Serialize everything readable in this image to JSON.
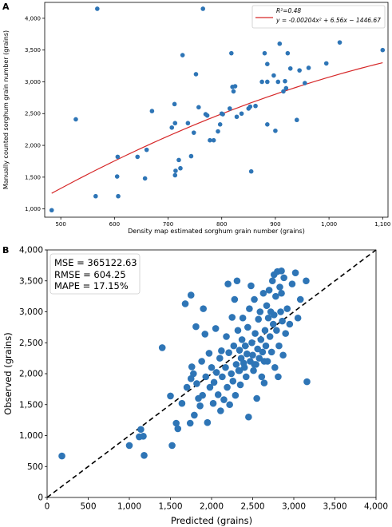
{
  "panels": {
    "a_label": "A",
    "b_label": "B"
  },
  "colors": {
    "point": "#2e75b6",
    "fit_line": "#d62728",
    "diagonal": "#000000",
    "axis": "#000000"
  },
  "chart_data": [
    {
      "type": "scatter",
      "panel": "A",
      "title": "",
      "xlabel": "Density map estimated sorghum grain number (grains)",
      "ylabel": "Manually counted sorghum grain number (grains)",
      "xlim": [
        470,
        1110
      ],
      "ylim": [
        870,
        4250
      ],
      "xticks": [
        500,
        600,
        700,
        800,
        900,
        1000,
        1100
      ],
      "xtick_labels": [
        "500",
        "600",
        "700",
        "800",
        "900",
        "1,000",
        "1,100"
      ],
      "yticks": [
        1000,
        1500,
        2000,
        2500,
        3000,
        3500,
        4000
      ],
      "ytick_labels": [
        "1,000",
        "1,500",
        "2,000",
        "2,500",
        "3,000",
        "3,500",
        "4,000"
      ],
      "legend": {
        "position": "top-right",
        "r2_label": "R²=0.48",
        "equation_label": "y = -0.00204x² + 6.56x − 1446.67"
      },
      "fit": {
        "a": -0.00204,
        "b": 6.56,
        "c": -1446.67,
        "x_range": [
          483,
          1100
        ]
      },
      "points": [
        {
          "x": 483,
          "y": 980
        },
        {
          "x": 528,
          "y": 2410
        },
        {
          "x": 565,
          "y": 1200
        },
        {
          "x": 568,
          "y": 4150
        },
        {
          "x": 605,
          "y": 1510
        },
        {
          "x": 606,
          "y": 1820
        },
        {
          "x": 607,
          "y": 1200
        },
        {
          "x": 643,
          "y": 1820
        },
        {
          "x": 657,
          "y": 1480
        },
        {
          "x": 660,
          "y": 1930
        },
        {
          "x": 670,
          "y": 2540
        },
        {
          "x": 707,
          "y": 2280
        },
        {
          "x": 712,
          "y": 2650
        },
        {
          "x": 713,
          "y": 1530
        },
        {
          "x": 714,
          "y": 1600
        },
        {
          "x": 713,
          "y": 2350
        },
        {
          "x": 720,
          "y": 1770
        },
        {
          "x": 723,
          "y": 1640
        },
        {
          "x": 727,
          "y": 3420
        },
        {
          "x": 737,
          "y": 2350
        },
        {
          "x": 743,
          "y": 1830
        },
        {
          "x": 748,
          "y": 2200
        },
        {
          "x": 752,
          "y": 3120
        },
        {
          "x": 757,
          "y": 2600
        },
        {
          "x": 765,
          "y": 4150
        },
        {
          "x": 770,
          "y": 2490
        },
        {
          "x": 773,
          "y": 2470
        },
        {
          "x": 778,
          "y": 2080
        },
        {
          "x": 785,
          "y": 2080
        },
        {
          "x": 793,
          "y": 2220
        },
        {
          "x": 797,
          "y": 2330
        },
        {
          "x": 800,
          "y": 2500
        },
        {
          "x": 802,
          "y": 2490
        },
        {
          "x": 815,
          "y": 2580
        },
        {
          "x": 818,
          "y": 3450
        },
        {
          "x": 820,
          "y": 2920
        },
        {
          "x": 822,
          "y": 2850
        },
        {
          "x": 825,
          "y": 2930
        },
        {
          "x": 828,
          "y": 2450
        },
        {
          "x": 837,
          "y": 2500
        },
        {
          "x": 850,
          "y": 2580
        },
        {
          "x": 853,
          "y": 2610
        },
        {
          "x": 855,
          "y": 1590
        },
        {
          "x": 863,
          "y": 2620
        },
        {
          "x": 875,
          "y": 3000
        },
        {
          "x": 880,
          "y": 3450
        },
        {
          "x": 885,
          "y": 2330
        },
        {
          "x": 885,
          "y": 3000
        },
        {
          "x": 885,
          "y": 3280
        },
        {
          "x": 897,
          "y": 3100
        },
        {
          "x": 900,
          "y": 2230
        },
        {
          "x": 905,
          "y": 3000
        },
        {
          "x": 908,
          "y": 3600
        },
        {
          "x": 915,
          "y": 2850
        },
        {
          "x": 918,
          "y": 3010
        },
        {
          "x": 920,
          "y": 2900
        },
        {
          "x": 923,
          "y": 3450
        },
        {
          "x": 928,
          "y": 3210
        },
        {
          "x": 940,
          "y": 2400
        },
        {
          "x": 945,
          "y": 3180
        },
        {
          "x": 955,
          "y": 2980
        },
        {
          "x": 962,
          "y": 3220
        },
        {
          "x": 995,
          "y": 3290
        },
        {
          "x": 1020,
          "y": 3620
        },
        {
          "x": 1100,
          "y": 3500
        }
      ]
    },
    {
      "type": "scatter",
      "panel": "B",
      "title": "",
      "xlabel": "Predicted (grains)",
      "ylabel": "Observed (grains)",
      "xlim": [
        0,
        4000
      ],
      "ylim": [
        0,
        4000
      ],
      "xticks": [
        0,
        500,
        1000,
        1500,
        2000,
        2500,
        3000,
        3500,
        4000
      ],
      "xtick_labels": [
        "0",
        "500",
        "1,000",
        "1,500",
        "2,000",
        "2,500",
        "3,000",
        "3,500",
        "4,000"
      ],
      "yticks": [
        0,
        500,
        1000,
        1500,
        2000,
        2500,
        3000,
        3500,
        4000
      ],
      "ytick_labels": [
        "0",
        "500",
        "1,000",
        "1,500",
        "2,000",
        "2,500",
        "3,000",
        "3,500",
        "4,000"
      ],
      "reference_line": "y = x (dashed)",
      "metrics": [
        {
          "label": "MSE = 365122.63"
        },
        {
          "label": "RMSE = 604.25"
        },
        {
          "label": "MAPE = 17.15%"
        }
      ],
      "points": [
        {
          "x": 180,
          "y": 670
        },
        {
          "x": 1000,
          "y": 840
        },
        {
          "x": 1120,
          "y": 980
        },
        {
          "x": 1140,
          "y": 1100
        },
        {
          "x": 1170,
          "y": 990
        },
        {
          "x": 1180,
          "y": 680
        },
        {
          "x": 1400,
          "y": 2420
        },
        {
          "x": 1500,
          "y": 1640
        },
        {
          "x": 1520,
          "y": 840
        },
        {
          "x": 1570,
          "y": 1200
        },
        {
          "x": 1590,
          "y": 1110
        },
        {
          "x": 1640,
          "y": 1520
        },
        {
          "x": 1680,
          "y": 3130
        },
        {
          "x": 1700,
          "y": 1780
        },
        {
          "x": 1740,
          "y": 1200
        },
        {
          "x": 1750,
          "y": 1920
        },
        {
          "x": 1750,
          "y": 3270
        },
        {
          "x": 1760,
          "y": 2110
        },
        {
          "x": 1780,
          "y": 2000
        },
        {
          "x": 1790,
          "y": 1330
        },
        {
          "x": 1810,
          "y": 2760
        },
        {
          "x": 1820,
          "y": 1840
        },
        {
          "x": 1840,
          "y": 1600
        },
        {
          "x": 1860,
          "y": 1480
        },
        {
          "x": 1880,
          "y": 2200
        },
        {
          "x": 1890,
          "y": 1650
        },
        {
          "x": 1900,
          "y": 3050
        },
        {
          "x": 1920,
          "y": 2640
        },
        {
          "x": 1930,
          "y": 1950
        },
        {
          "x": 1950,
          "y": 1210
        },
        {
          "x": 1970,
          "y": 2330
        },
        {
          "x": 1980,
          "y": 1780
        },
        {
          "x": 2000,
          "y": 2100
        },
        {
          "x": 2020,
          "y": 1520
        },
        {
          "x": 2030,
          "y": 1860
        },
        {
          "x": 2050,
          "y": 2730
        },
        {
          "x": 2060,
          "y": 2020
        },
        {
          "x": 2080,
          "y": 1660
        },
        {
          "x": 2100,
          "y": 2250
        },
        {
          "x": 2110,
          "y": 1400
        },
        {
          "x": 2120,
          "y": 2370
        },
        {
          "x": 2130,
          "y": 1950
        },
        {
          "x": 2150,
          "y": 1580
        },
        {
          "x": 2170,
          "y": 2100
        },
        {
          "x": 2180,
          "y": 2600
        },
        {
          "x": 2190,
          "y": 1780
        },
        {
          "x": 2200,
          "y": 3450
        },
        {
          "x": 2210,
          "y": 2340
        },
        {
          "x": 2220,
          "y": 1500
        },
        {
          "x": 2240,
          "y": 2000
        },
        {
          "x": 2250,
          "y": 2910
        },
        {
          "x": 2260,
          "y": 1880
        },
        {
          "x": 2270,
          "y": 2450
        },
        {
          "x": 2280,
          "y": 3200
        },
        {
          "x": 2290,
          "y": 1650
        },
        {
          "x": 2300,
          "y": 2150
        },
        {
          "x": 2310,
          "y": 3500
        },
        {
          "x": 2320,
          "y": 2700
        },
        {
          "x": 2330,
          "y": 2050
        },
        {
          "x": 2340,
          "y": 2380
        },
        {
          "x": 2350,
          "y": 1820
        },
        {
          "x": 2360,
          "y": 2250
        },
        {
          "x": 2370,
          "y": 2550
        },
        {
          "x": 2380,
          "y": 2900
        },
        {
          "x": 2390,
          "y": 2170
        },
        {
          "x": 2400,
          "y": 2100
        },
        {
          "x": 2410,
          "y": 2450
        },
        {
          "x": 2420,
          "y": 1950
        },
        {
          "x": 2430,
          "y": 2320
        },
        {
          "x": 2440,
          "y": 2750
        },
        {
          "x": 2450,
          "y": 1300
        },
        {
          "x": 2460,
          "y": 3050
        },
        {
          "x": 2470,
          "y": 2200
        },
        {
          "x": 2480,
          "y": 3420
        },
        {
          "x": 2490,
          "y": 2500
        },
        {
          "x": 2500,
          "y": 2300
        },
        {
          "x": 2510,
          "y": 2050
        },
        {
          "x": 2520,
          "y": 3200
        },
        {
          "x": 2530,
          "y": 2650
        },
        {
          "x": 2540,
          "y": 2150
        },
        {
          "x": 2550,
          "y": 1600
        },
        {
          "x": 2560,
          "y": 2400
        },
        {
          "x": 2570,
          "y": 2880
        },
        {
          "x": 2580,
          "y": 2250
        },
        {
          "x": 2590,
          "y": 3000
        },
        {
          "x": 2600,
          "y": 2550
        },
        {
          "x": 2610,
          "y": 1950
        },
        {
          "x": 2620,
          "y": 2350
        },
        {
          "x": 2630,
          "y": 3300
        },
        {
          "x": 2640,
          "y": 1850
        },
        {
          "x": 2650,
          "y": 2700
        },
        {
          "x": 2660,
          "y": 2450
        },
        {
          "x": 2670,
          "y": 3100
        },
        {
          "x": 2680,
          "y": 2200
        },
        {
          "x": 2690,
          "y": 2900
        },
        {
          "x": 2700,
          "y": 3350
        },
        {
          "x": 2710,
          "y": 2600
        },
        {
          "x": 2720,
          "y": 3000
        },
        {
          "x": 2730,
          "y": 2350
        },
        {
          "x": 2740,
          "y": 3500
        },
        {
          "x": 2750,
          "y": 2800
        },
        {
          "x": 2760,
          "y": 3600
        },
        {
          "x": 2770,
          "y": 2100
        },
        {
          "x": 2780,
          "y": 3250
        },
        {
          "x": 2790,
          "y": 2700
        },
        {
          "x": 2800,
          "y": 3650
        },
        {
          "x": 2810,
          "y": 1950
        },
        {
          "x": 2820,
          "y": 2450
        },
        {
          "x": 2830,
          "y": 3400
        },
        {
          "x": 2840,
          "y": 3000
        },
        {
          "x": 2850,
          "y": 3660
        },
        {
          "x": 2860,
          "y": 2850
        },
        {
          "x": 2870,
          "y": 2300
        },
        {
          "x": 2880,
          "y": 3550
        },
        {
          "x": 2900,
          "y": 2650
        },
        {
          "x": 2920,
          "y": 3050
        },
        {
          "x": 2950,
          "y": 2800
        },
        {
          "x": 2980,
          "y": 3450
        },
        {
          "x": 3020,
          "y": 3630
        },
        {
          "x": 3050,
          "y": 2900
        },
        {
          "x": 3080,
          "y": 3200
        },
        {
          "x": 3150,
          "y": 3500
        },
        {
          "x": 3160,
          "y": 1870
        },
        {
          "x": 2850,
          "y": 3300
        },
        {
          "x": 2760,
          "y": 2950
        },
        {
          "x": 2640,
          "y": 2200
        },
        {
          "x": 2520,
          "y": 2150
        },
        {
          "x": 2340,
          "y": 2050
        }
      ]
    }
  ]
}
